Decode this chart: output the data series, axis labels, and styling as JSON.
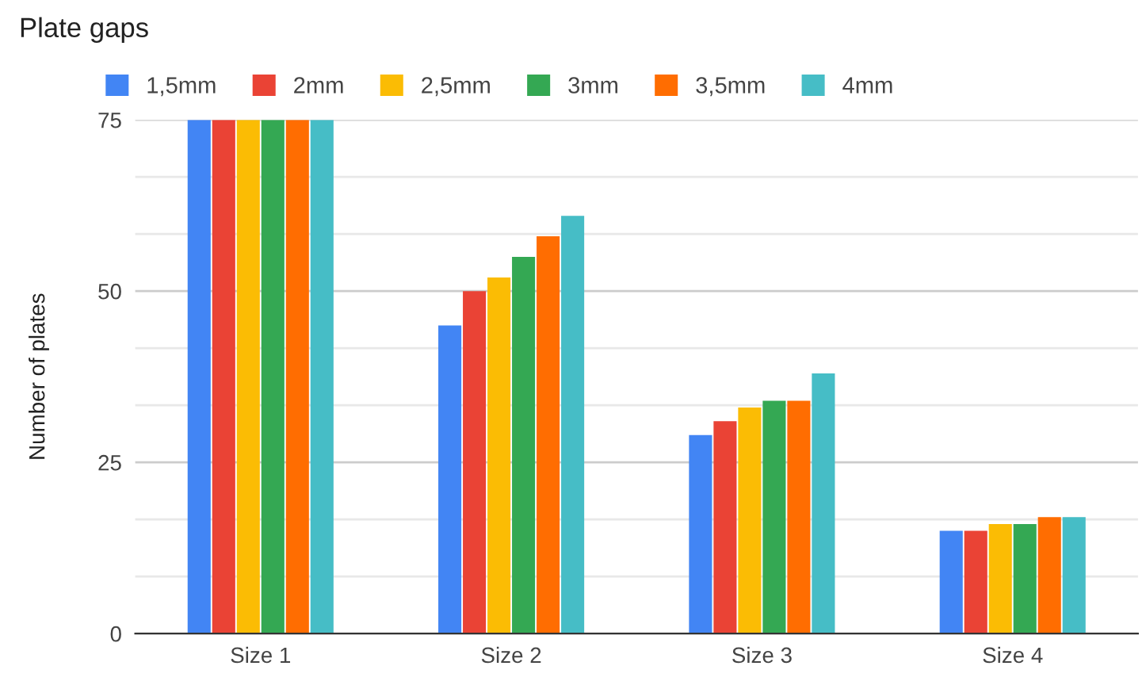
{
  "chart_data": {
    "type": "bar",
    "title": "Plate gaps",
    "ylabel": "Number of plates",
    "categories": [
      "Size 1",
      "Size 2",
      "Size 3",
      "Size 4"
    ],
    "series": [
      {
        "name": "1,5mm",
        "color": "#4285f4",
        "values": [
          75,
          45,
          29,
          15
        ]
      },
      {
        "name": "2mm",
        "color": "#ea4335",
        "values": [
          75,
          50,
          31,
          15
        ]
      },
      {
        "name": "2,5mm",
        "color": "#fbbc04",
        "values": [
          75,
          52,
          33,
          16
        ]
      },
      {
        "name": "3mm",
        "color": "#34a853",
        "values": [
          75,
          55,
          34,
          16
        ]
      },
      {
        "name": "3,5mm",
        "color": "#ff6d01",
        "values": [
          75,
          58,
          34,
          17
        ]
      },
      {
        "name": "4mm",
        "color": "#46bdc6",
        "values": [
          75,
          61,
          38,
          17
        ]
      }
    ],
    "ylim": [
      0,
      75
    ],
    "yticks": [
      0,
      {
        "value": 8.33,
        "label": null
      },
      {
        "value": 16.67,
        "label": null
      },
      25,
      {
        "value": 33.33,
        "label": null
      },
      {
        "value": 41.67,
        "label": null
      },
      50,
      {
        "value": 58.33,
        "label": null
      },
      {
        "value": 66.67,
        "label": null
      },
      75
    ],
    "grid": "y",
    "legend": "top left"
  }
}
